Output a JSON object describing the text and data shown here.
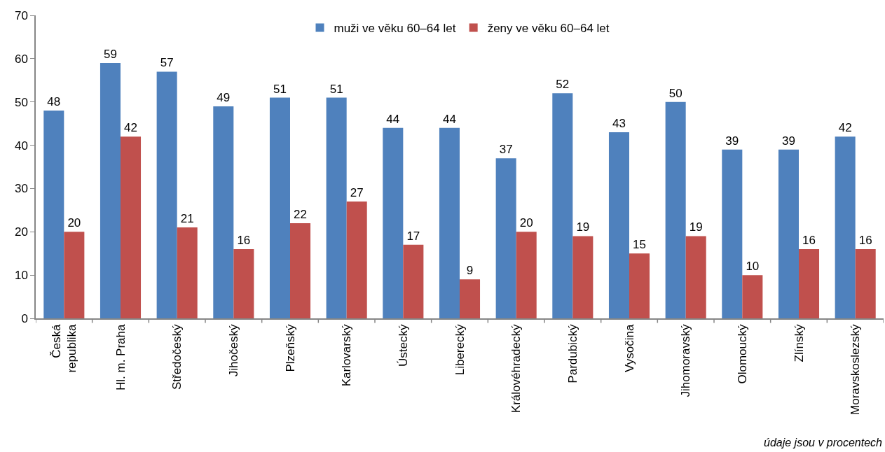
{
  "chart_data": {
    "type": "bar",
    "categories": [
      "Česká republika",
      "Hl. m. Praha",
      "Středočeský",
      "Jihočeský",
      "Plzeňský",
      "Karlovarský",
      "Ústecký",
      "Liberecký",
      "Královéhradecký",
      "Pardubický",
      "Vysočina",
      "Jihomoravský",
      "Olomoucký",
      "Zlínský",
      "Moravskoslezský"
    ],
    "series": [
      {
        "name": "muži ve věku 60–64 let",
        "color": "#4f81bd",
        "values": [
          48,
          59,
          57,
          49,
          51,
          51,
          44,
          44,
          37,
          52,
          43,
          50,
          39,
          39,
          42
        ]
      },
      {
        "name": "ženy ve věku 60–64 let",
        "color": "#c0504d",
        "values": [
          20,
          42,
          21,
          16,
          22,
          27,
          17,
          9,
          20,
          19,
          15,
          19,
          10,
          16,
          16
        ]
      }
    ],
    "ylim": [
      0,
      70
    ],
    "yticks": [
      0,
      10,
      20,
      30,
      40,
      50,
      60,
      70
    ],
    "data_labels": true,
    "grid": false,
    "legend": "top",
    "annotations": [
      "údaje jsou v procentech"
    ]
  }
}
